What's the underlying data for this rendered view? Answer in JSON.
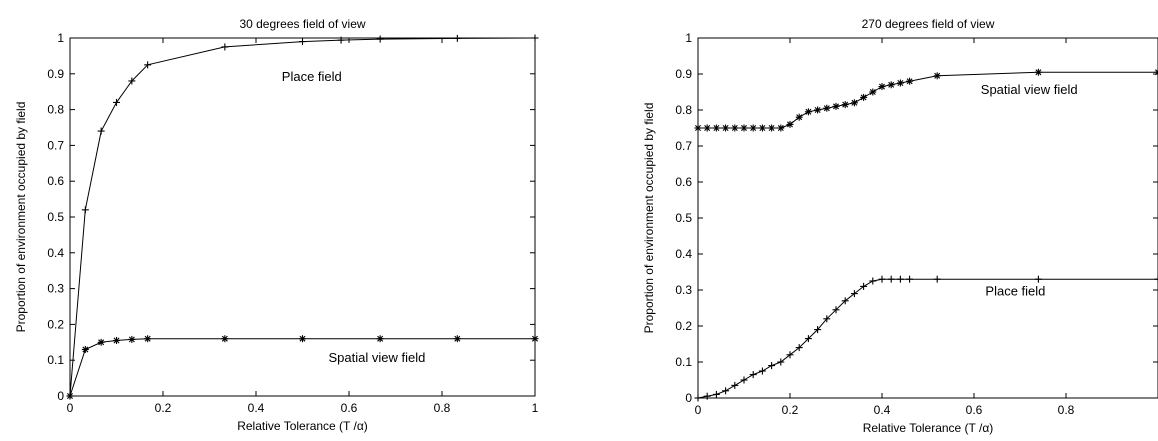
{
  "chart_data": [
    {
      "type": "line",
      "title": "30 degrees field of view",
      "xlabel": "Relative Tolerance (T /α)",
      "ylabel": "Proportion of environment occupied by field",
      "xlim": [
        0,
        1
      ],
      "ylim": [
        0,
        1
      ],
      "xticks": [
        0,
        0.2,
        0.4,
        0.6,
        0.8,
        1
      ],
      "xtick_labels": [
        "0",
        "0.2",
        "0.4",
        "0.6",
        "0.8",
        "1"
      ],
      "yticks": [
        0,
        0.1,
        0.2,
        0.3,
        0.4,
        0.5,
        0.6,
        0.7,
        0.8,
        0.9,
        1
      ],
      "ytick_labels": [
        "0",
        "0.1",
        "0.2",
        "0.3",
        "0.4",
        "0.5",
        "0.6",
        "0.7",
        "0.8",
        "0.9",
        "1"
      ],
      "grid": false,
      "series": [
        {
          "name": "Place field",
          "marker": "+",
          "x": [
            0,
            0.033,
            0.067,
            0.1,
            0.133,
            0.167,
            0.333,
            0.5,
            0.583,
            0.667,
            0.833,
            1.0
          ],
          "y": [
            0,
            0.52,
            0.74,
            0.82,
            0.88,
            0.925,
            0.975,
            0.99,
            0.994,
            0.997,
            0.999,
            1.0
          ]
        },
        {
          "name": "Spatial view field",
          "marker": "*",
          "x": [
            0,
            0.033,
            0.067,
            0.1,
            0.133,
            0.167,
            0.333,
            0.5,
            0.667,
            0.833,
            1.0
          ],
          "y": [
            0,
            0.13,
            0.15,
            0.155,
            0.158,
            0.16,
            0.16,
            0.16,
            0.16,
            0.16,
            0.16
          ]
        }
      ],
      "annotations": [
        {
          "text": "Place field",
          "x": 0.52,
          "y": 0.88
        },
        {
          "text": "Spatial view field",
          "x": 0.66,
          "y": 0.095
        }
      ]
    },
    {
      "type": "line",
      "title": "270 degrees field of view",
      "xlabel": "Relative Tolerance (T /α)",
      "ylabel": "Proportion of environment occupied by field",
      "xlim": [
        0,
        1
      ],
      "ylim": [
        0,
        1
      ],
      "xticks": [
        0,
        0.2,
        0.4,
        0.6,
        0.8
      ],
      "xtick_labels": [
        "0",
        "0.2",
        "0.4",
        "0.6",
        "0.8"
      ],
      "yticks": [
        0,
        0.1,
        0.2,
        0.3,
        0.4,
        0.5,
        0.6,
        0.7,
        0.8,
        0.9,
        1
      ],
      "ytick_labels": [
        "0",
        "0.1",
        "0.2",
        "0.3",
        "0.4",
        "0.5",
        "0.6",
        "0.7",
        "0.8",
        "0.9",
        "1"
      ],
      "grid": false,
      "series": [
        {
          "name": "Spatial view field",
          "marker": "*",
          "x": [
            0,
            0.02,
            0.04,
            0.06,
            0.08,
            0.1,
            0.12,
            0.14,
            0.16,
            0.18,
            0.2,
            0.22,
            0.24,
            0.26,
            0.28,
            0.3,
            0.32,
            0.34,
            0.36,
            0.38,
            0.4,
            0.42,
            0.44,
            0.46,
            0.52,
            0.74,
            1.0
          ],
          "y": [
            0.75,
            0.75,
            0.75,
            0.75,
            0.75,
            0.75,
            0.75,
            0.75,
            0.75,
            0.75,
            0.76,
            0.78,
            0.795,
            0.8,
            0.805,
            0.81,
            0.815,
            0.82,
            0.835,
            0.85,
            0.865,
            0.87,
            0.875,
            0.88,
            0.895,
            0.905,
            0.905
          ]
        },
        {
          "name": "Place field",
          "marker": "+",
          "x": [
            0,
            0.02,
            0.04,
            0.06,
            0.08,
            0.1,
            0.12,
            0.14,
            0.16,
            0.18,
            0.2,
            0.22,
            0.24,
            0.26,
            0.28,
            0.3,
            0.32,
            0.34,
            0.36,
            0.38,
            0.4,
            0.42,
            0.44,
            0.46,
            0.52,
            0.74,
            1.0
          ],
          "y": [
            0,
            0.005,
            0.01,
            0.02,
            0.035,
            0.05,
            0.065,
            0.075,
            0.09,
            0.1,
            0.12,
            0.14,
            0.165,
            0.19,
            0.22,
            0.245,
            0.27,
            0.29,
            0.31,
            0.325,
            0.33,
            0.33,
            0.33,
            0.33,
            0.33,
            0.33,
            0.33
          ]
        }
      ],
      "annotations": [
        {
          "text": "Spatial view field",
          "x": 0.72,
          "y": 0.845
        },
        {
          "text": "Place field",
          "x": 0.69,
          "y": 0.285
        }
      ]
    }
  ]
}
